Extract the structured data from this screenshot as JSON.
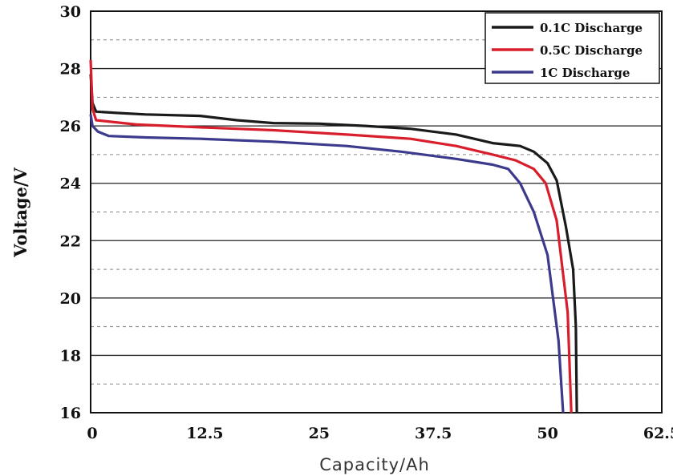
{
  "chart_data": {
    "type": "line",
    "title": "",
    "xlabel": "Capacity/Ah",
    "ylabel": "Voltage/V",
    "xlim": [
      0,
      62.5
    ],
    "ylim": [
      16,
      30
    ],
    "x_ticks": [
      "0",
      "12.5",
      "25",
      "37.5",
      "50",
      "62.5"
    ],
    "y_ticks": [
      "16",
      "18",
      "20",
      "22",
      "24",
      "26",
      "28",
      "30"
    ],
    "grid": {
      "major": "solid horizontal at even voltages",
      "minor": "dashed horizontal at odd voltages"
    },
    "legend_position": "top-right",
    "series": [
      {
        "name": "0.1C Discharge",
        "color": "#1a1a1a",
        "points": [
          [
            0,
            27.8
          ],
          [
            0.2,
            26.8
          ],
          [
            0.6,
            26.5
          ],
          [
            3,
            26.45
          ],
          [
            6,
            26.4
          ],
          [
            12,
            26.35
          ],
          [
            16,
            26.2
          ],
          [
            20,
            26.1
          ],
          [
            25,
            26.08
          ],
          [
            30,
            26.0
          ],
          [
            35,
            25.9
          ],
          [
            40,
            25.7
          ],
          [
            44,
            25.4
          ],
          [
            47,
            25.3
          ],
          [
            48.5,
            25.1
          ],
          [
            50,
            24.7
          ],
          [
            51,
            24.1
          ],
          [
            52,
            22.5
          ],
          [
            52.8,
            21.0
          ],
          [
            53.1,
            19.0
          ],
          [
            53.2,
            16.0
          ]
        ]
      },
      {
        "name": "0.5C Discharge",
        "color": "#d81e2c",
        "points": [
          [
            0,
            28.3
          ],
          [
            0.2,
            26.6
          ],
          [
            0.6,
            26.2
          ],
          [
            5,
            26.05
          ],
          [
            12,
            25.95
          ],
          [
            20,
            25.85
          ],
          [
            28,
            25.7
          ],
          [
            35,
            25.55
          ],
          [
            40,
            25.3
          ],
          [
            44,
            25.0
          ],
          [
            46.5,
            24.8
          ],
          [
            48.5,
            24.5
          ],
          [
            49.8,
            24.0
          ],
          [
            51,
            22.7
          ],
          [
            52.2,
            19.5
          ],
          [
            52.6,
            16.0
          ]
        ]
      },
      {
        "name": "1C    Discharge",
        "color": "#3c3a8c",
        "points": [
          [
            0,
            26.4
          ],
          [
            0.2,
            26.0
          ],
          [
            0.8,
            25.8
          ],
          [
            2,
            25.65
          ],
          [
            6,
            25.6
          ],
          [
            12,
            25.55
          ],
          [
            20,
            25.45
          ],
          [
            28,
            25.3
          ],
          [
            34,
            25.1
          ],
          [
            40,
            24.85
          ],
          [
            44,
            24.65
          ],
          [
            45.7,
            24.5
          ],
          [
            47,
            24.0
          ],
          [
            48.5,
            23.0
          ],
          [
            50,
            21.5
          ],
          [
            51.2,
            18.5
          ],
          [
            51.7,
            16.0
          ]
        ]
      }
    ]
  }
}
